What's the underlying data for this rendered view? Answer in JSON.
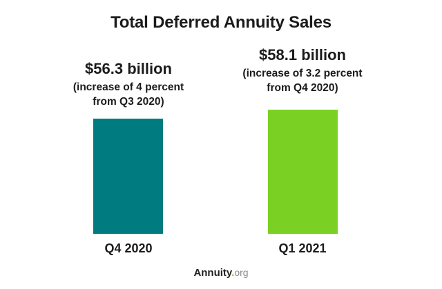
{
  "title": "Total Deferred Annuity Sales",
  "chart_data": {
    "type": "bar",
    "title": "Total Deferred Annuity Sales",
    "categories": [
      "Q4 2020",
      "Q1 2021"
    ],
    "values": [
      56.3,
      58.1
    ],
    "value_unit": "billion USD",
    "xlabel": "",
    "ylabel": "",
    "grid": false,
    "legend_position": "none",
    "axes_visible": false,
    "bars": [
      {
        "category": "Q4 2020",
        "value": 56.3,
        "value_label": "$56.3 billion",
        "note_lines": [
          "(increase of 4 percent",
          "from Q3 2020)"
        ],
        "color": "#007C80"
      },
      {
        "category": "Q1 2021",
        "value": 58.1,
        "value_label": "$58.1 billion",
        "note_lines": [
          "(increase of 3.2 percent",
          "from Q4 2020)"
        ],
        "color": "#7BD123"
      }
    ]
  },
  "footer": {
    "brand_name": "Annuity",
    "brand_dot": ".",
    "brand_tld": "org"
  },
  "colors": {
    "teal_bar": "#007C80",
    "green_bar": "#7BD123",
    "text": "#1b1b1b",
    "brand_gray": "#8a8a8a",
    "brand_dot_green": "#7BD123",
    "background": "#FFFFFF"
  }
}
